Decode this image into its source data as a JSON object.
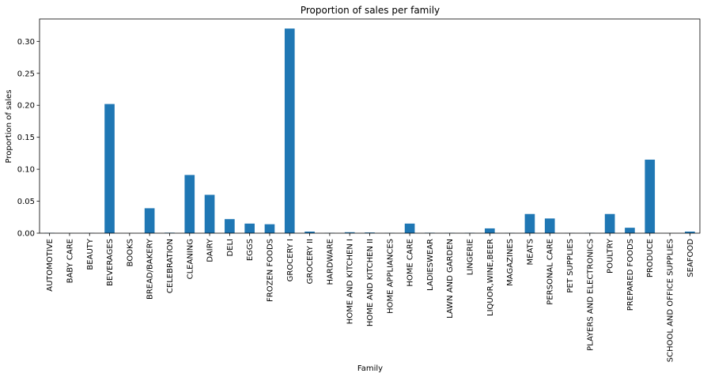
{
  "chart_data": {
    "type": "bar",
    "title": "Proportion of sales per family",
    "xlabel": "Family",
    "ylabel": "Proportion of sales",
    "ylim": [
      0,
      0.335
    ],
    "yticks": [
      "0.00",
      "0.05",
      "0.10",
      "0.15",
      "0.20",
      "0.25",
      "0.30"
    ],
    "grid": false,
    "legend": "none",
    "bar_color": "#1f77b4",
    "categories": [
      "AUTOMOTIVE",
      "BABY CARE",
      "BEAUTY",
      "BEVERAGES",
      "BOOKS",
      "BREAD/BAKERY",
      "CELEBRATION",
      "CLEANING",
      "DAIRY",
      "DELI",
      "EGGS",
      "FROZEN FOODS",
      "GROCERY I",
      "GROCERY II",
      "HARDWARE",
      "HOME AND KITCHEN I",
      "HOME AND KITCHEN II",
      "HOME APPLIANCES",
      "HOME CARE",
      "LADIESWEAR",
      "LAWN AND GARDEN",
      "LINGERIE",
      "LIQUOR,WINE,BEER",
      "MAGAZINES",
      "MEATS",
      "PERSONAL CARE",
      "PET SUPPLIES",
      "PLAYERS AND ELECTRONICS",
      "POULTRY",
      "PREPARED FOODS",
      "PRODUCE",
      "SCHOOL AND OFFICE SUPPLIES",
      "SEAFOOD"
    ],
    "values": [
      0.0005,
      0.0001,
      0.0003,
      0.202,
      0.0001,
      0.039,
      0.0008,
      0.091,
      0.06,
      0.022,
      0.015,
      0.014,
      0.32,
      0.0025,
      0.0005,
      0.0015,
      0.0011,
      0.0004,
      0.015,
      0.0007,
      0.0005,
      0.0006,
      0.0075,
      0.0004,
      0.03,
      0.023,
      0.0003,
      0.0006,
      0.03,
      0.0085,
      0.115,
      0.0001,
      0.0025
    ]
  }
}
